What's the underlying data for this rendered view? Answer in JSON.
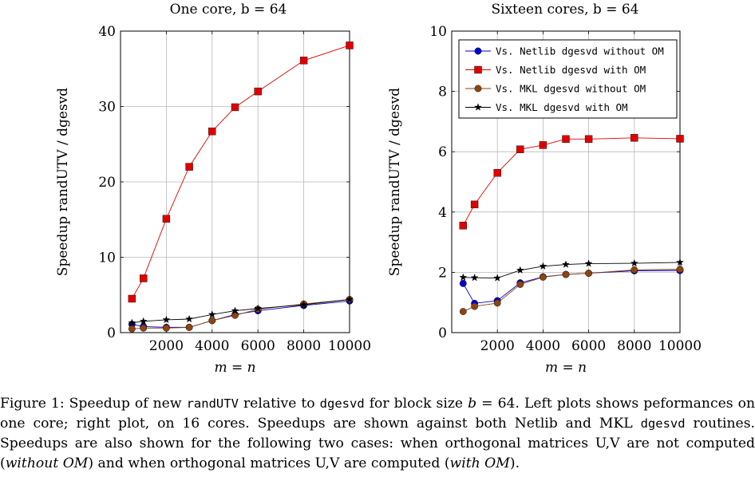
{
  "chart_data": [
    {
      "type": "line",
      "title": "One core, b = 64",
      "xlabel": "m = n",
      "ylabel": "Speedup randUTV / dgesvd",
      "x": [
        500,
        1000,
        2000,
        3000,
        4000,
        5000,
        6000,
        8000,
        10000
      ],
      "xlim": [
        0,
        10000
      ],
      "ylim": [
        0,
        40
      ],
      "xticks": [
        2000,
        4000,
        6000,
        8000,
        10000
      ],
      "yticks": [
        0,
        10,
        20,
        30,
        40
      ],
      "grid": true,
      "series": [
        {
          "name": "Vs. Netlib dgesvd without OM",
          "color": "#0000cc",
          "marker": "circle",
          "values": [
            1.1,
            0.8,
            0.7,
            0.7,
            1.6,
            2.4,
            2.9,
            3.6,
            4.2
          ]
        },
        {
          "name": "Vs. Netlib dgesvd with OM",
          "color": "#e00000",
          "marker": "square",
          "values": [
            4.5,
            7.2,
            15.1,
            22.0,
            26.7,
            29.9,
            32.0,
            36.1,
            38.1
          ]
        },
        {
          "name": "Vs. MKL dgesvd without OM",
          "color": "#8b4513",
          "marker": "circle",
          "values": [
            0.5,
            0.6,
            0.6,
            0.7,
            1.6,
            2.3,
            3.1,
            3.8,
            4.4
          ]
        },
        {
          "name": "Vs. MKL dgesvd with OM",
          "color": "#000000",
          "marker": "star",
          "values": [
            1.3,
            1.5,
            1.7,
            1.8,
            2.4,
            2.9,
            3.2,
            3.7,
            4.4
          ]
        }
      ]
    },
    {
      "type": "line",
      "title": "Sixteen cores, b = 64",
      "xlabel": "m = n",
      "ylabel": "Speedup randUTV / dgesvd",
      "x": [
        500,
        1000,
        2000,
        3000,
        4000,
        5000,
        6000,
        8000,
        10000
      ],
      "xlim": [
        0,
        10000
      ],
      "ylim": [
        0,
        10
      ],
      "xticks": [
        2000,
        4000,
        6000,
        8000,
        10000
      ],
      "yticks": [
        0,
        2,
        4,
        6,
        8,
        10
      ],
      "grid": true,
      "legend": "top-right",
      "series": [
        {
          "name": "Vs. Netlib dgesvd without OM",
          "color": "#0000cc",
          "marker": "circle",
          "values": [
            1.63,
            0.97,
            1.06,
            1.65,
            1.85,
            1.93,
            1.97,
            2.05,
            2.06
          ]
        },
        {
          "name": "Vs. Netlib dgesvd with OM",
          "color": "#e00000",
          "marker": "square",
          "values": [
            3.55,
            4.25,
            5.3,
            6.08,
            6.22,
            6.42,
            6.42,
            6.46,
            6.43
          ]
        },
        {
          "name": "Vs. MKL dgesvd without OM",
          "color": "#8b4513",
          "marker": "circle",
          "values": [
            0.7,
            0.87,
            0.98,
            1.6,
            1.84,
            1.93,
            1.97,
            2.08,
            2.1
          ]
        },
        {
          "name": "Vs. MKL dgesvd with OM",
          "color": "#000000",
          "marker": "star",
          "values": [
            1.83,
            1.82,
            1.81,
            2.07,
            2.2,
            2.26,
            2.29,
            2.3,
            2.33
          ]
        }
      ]
    }
  ],
  "caption": {
    "t1": "Figure 1: Speedup of new ",
    "c1": "randUTV",
    "t2": " relative to ",
    "c2": "dgesvd",
    "t3": " for block size ",
    "b": "b",
    "t4": " = 64. Left plots shows peformances on one core; right plot, on 16 cores. Speedups are shown against both Netlib and MKL ",
    "c3": "dgesvd",
    "t5": " routines. Speedups are also shown for the following two cases: when orthogonal matrices U,V are not computed (",
    "i1": "without OM",
    "t6": ") and when orthogonal matrices U,V are computed (",
    "i2": "with OM",
    "t7": ")."
  }
}
